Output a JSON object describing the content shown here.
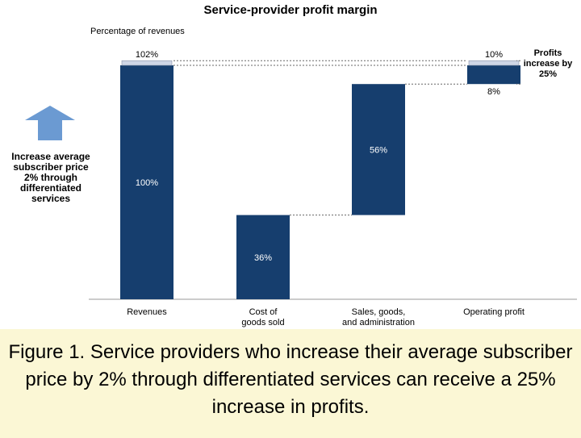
{
  "chart_data": {
    "type": "bar",
    "subtype": "waterfall",
    "title": "Service-provider profit margin",
    "ylabel": "Percentage of revenues",
    "categories": [
      "Revenues",
      "Cost of goods sold",
      "Sales, goods, and administration",
      "Operating profit"
    ],
    "bars": [
      {
        "category": "Revenues",
        "start": 0,
        "end": 100,
        "label": "100%"
      },
      {
        "category": "Cost of goods sold",
        "start": 0,
        "end": 36,
        "label": "36%"
      },
      {
        "category": "Sales, goods, and administration",
        "start": 36,
        "end": 92,
        "label": "56%"
      },
      {
        "category": "Operating profit",
        "start": 92,
        "end": 100,
        "label": "8%"
      }
    ],
    "increments": [
      {
        "category": "Revenues",
        "from": 100,
        "to": 102,
        "label": "102%"
      },
      {
        "category": "Operating profit",
        "from": 100,
        "to": 102,
        "label": "10%"
      }
    ],
    "ylim": [
      0,
      102
    ],
    "grid": false,
    "colors": {
      "bar": "#163e6e",
      "increment": "#cfd6e6",
      "arrow": "#6b9ad2"
    }
  },
  "annotation": "Increase average subscriber price 2% through differentiated services",
  "callout": "Profits increase by 25%",
  "caption": "Figure 1. Service providers who increase their average subscriber price by 2% through differentiated services can receive a 25% increase in profits."
}
